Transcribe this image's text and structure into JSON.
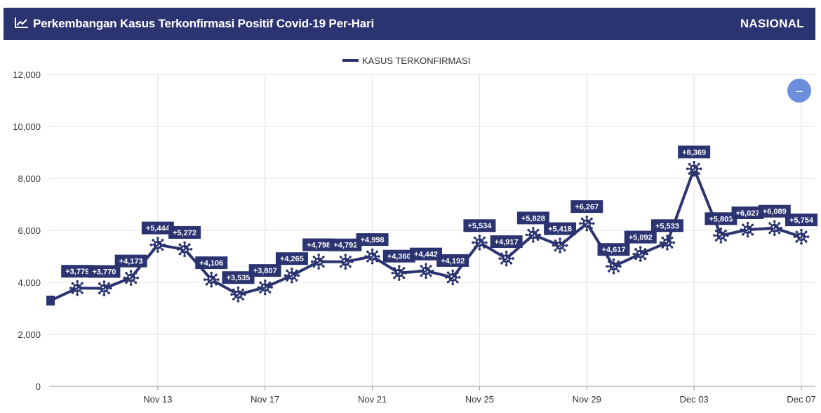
{
  "header": {
    "title": "Perkembangan Kasus Terkonfirmasi Positif Covid-19 Per-Hari",
    "scope": "NASIONAL",
    "icon": "line-chart-icon"
  },
  "zoom_button": {
    "label": "–",
    "icon": "minus-icon"
  },
  "colors": {
    "series": "#2b3470",
    "header": "#2b3470",
    "grid": "#e0e0e0",
    "zoom": "#6b8fdc"
  },
  "chart_data": {
    "type": "line",
    "title": "Perkembangan Kasus Terkonfirmasi Positif Covid-19 Per-Hari",
    "legend": {
      "position": "top",
      "entries": [
        "KASUS TERKONFIRMASI"
      ]
    },
    "ylim": [
      0,
      12000
    ],
    "yticks": [
      "0",
      "2,000",
      "4,000",
      "6,000",
      "8,000",
      "10,000",
      "12,000"
    ],
    "xticks": [
      "Nov 13",
      "Nov 17",
      "Nov 21",
      "Nov 25",
      "Nov 29",
      "Dec 03",
      "Dec 07"
    ],
    "grid": true,
    "x": [
      "Nov 09",
      "Nov 10",
      "Nov 11",
      "Nov 12",
      "Nov 13",
      "Nov 14",
      "Nov 15",
      "Nov 16",
      "Nov 17",
      "Nov 18",
      "Nov 19",
      "Nov 20",
      "Nov 21",
      "Nov 22",
      "Nov 23",
      "Nov 24",
      "Nov 25",
      "Nov 26",
      "Nov 27",
      "Nov 28",
      "Nov 29",
      "Nov 30",
      "Dec 01",
      "Dec 02",
      "Dec 03",
      "Dec 04",
      "Dec 05",
      "Dec 06",
      "Dec 07"
    ],
    "series": [
      {
        "name": "KASUS TERKONFIRMASI",
        "values": [
          3300,
          3779,
          3770,
          4173,
          5444,
          5272,
          4106,
          3535,
          3807,
          4265,
          4798,
          4792,
          4998,
          4360,
          4442,
          4192,
          5534,
          4917,
          5828,
          5418,
          6267,
          4617,
          5092,
          5533,
          8369,
          5803,
          6027,
          6089,
          5754
        ],
        "labels": [
          "",
          "+3,779",
          "+3,770",
          "+4,173",
          "+5,444",
          "+5,272",
          "+4,106",
          "+3,535",
          "+3,807",
          "+4,265",
          "+4,798",
          "+4,792",
          "+4,998",
          "+4,360",
          "+4,442",
          "+4,192",
          "+5,534",
          "+4,917",
          "+5,828",
          "+5,418",
          "+6,267",
          "+4,617",
          "+5,092",
          "+5,533",
          "+8,369",
          "+5,803",
          "+6,027",
          "+6,089",
          "+5,754"
        ]
      }
    ]
  }
}
